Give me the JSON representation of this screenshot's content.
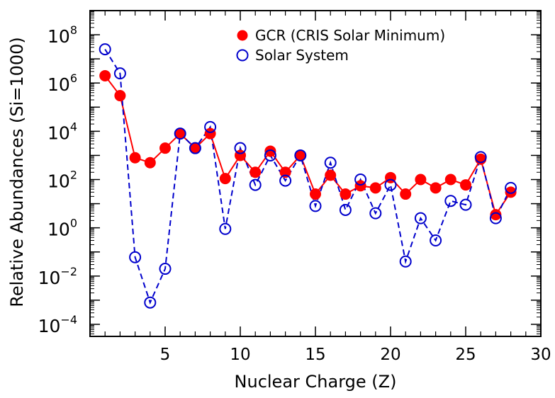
{
  "chart_data": {
    "type": "scatter",
    "xlabel": "Nuclear Charge (Z)",
    "ylabel": "Relative Abundances (Si=1000)",
    "x_scale": "linear",
    "y_scale": "log",
    "xlim": [
      0,
      30
    ],
    "ylim_log10": [
      -4.5,
      9
    ],
    "x_ticks": [
      5,
      10,
      15,
      20,
      25,
      30
    ],
    "x_tick_labels": [
      "5",
      "10",
      "15",
      "20",
      "25",
      "30"
    ],
    "y_ticks_log10": [
      -4,
      -2,
      0,
      2,
      4,
      6,
      8
    ],
    "y_tick_labels": [
      {
        "base": "10",
        "exp": "−4"
      },
      {
        "base": "10",
        "exp": "−2"
      },
      {
        "base": "10",
        "exp": "0"
      },
      {
        "base": "10",
        "exp": "2"
      },
      {
        "base": "10",
        "exp": "4"
      },
      {
        "base": "10",
        "exp": "6"
      },
      {
        "base": "10",
        "exp": "8"
      }
    ],
    "legend_position": "top-right",
    "series": [
      {
        "name": "GCR (CRIS Solar Minimum)",
        "marker": "filled-circle",
        "line": "solid",
        "color": "#ff0000",
        "x": [
          1,
          2,
          3,
          4,
          5,
          6,
          7,
          8,
          9,
          10,
          11,
          12,
          13,
          14,
          15,
          16,
          17,
          18,
          19,
          20,
          21,
          22,
          23,
          24,
          25,
          26,
          27,
          28
        ],
        "y": [
          2000000,
          300000,
          800,
          500,
          2000,
          8000,
          2000,
          8000,
          110,
          1000,
          200,
          1500,
          200,
          1000,
          25,
          150,
          25,
          55,
          45,
          120,
          25,
          100,
          45,
          100,
          60,
          700,
          3.5,
          30
        ]
      },
      {
        "name": "Solar System",
        "marker": "open-circle",
        "line": "dashed",
        "color": "#0000cc",
        "x": [
          1,
          2,
          3,
          4,
          5,
          6,
          7,
          8,
          9,
          10,
          11,
          12,
          13,
          14,
          15,
          16,
          17,
          18,
          19,
          20,
          21,
          22,
          23,
          24,
          25,
          26,
          27,
          28
        ],
        "y": [
          25000000,
          2500000,
          0.06,
          0.0008,
          0.02,
          8000,
          2000,
          15000,
          0.9,
          2000,
          60,
          1000,
          90,
          1000,
          8,
          500,
          5.5,
          100,
          4,
          60,
          0.04,
          2.5,
          0.3,
          13,
          9,
          850,
          2.5,
          45
        ]
      }
    ]
  }
}
